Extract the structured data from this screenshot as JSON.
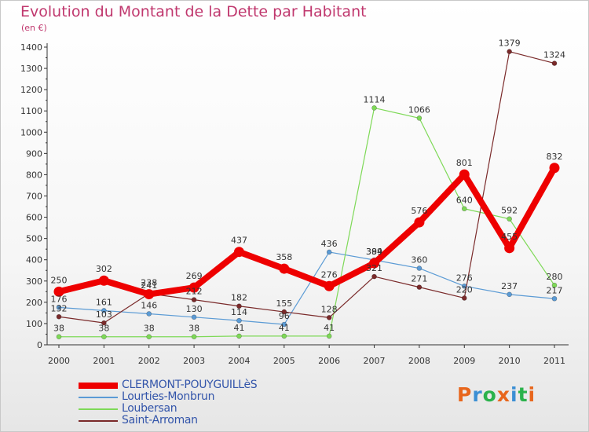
{
  "chart_data": {
    "type": "line",
    "title": "Evolution du Montant de la Dette par Habitant",
    "subtitle": "(en €)",
    "categories": [
      "2000",
      "2001",
      "2002",
      "2003",
      "2004",
      "2005",
      "2006",
      "2007",
      "2008",
      "2009",
      "2010",
      "2011"
    ],
    "yticks": [
      0,
      100,
      200,
      300,
      400,
      500,
      600,
      700,
      800,
      900,
      1000,
      1100,
      1200,
      1300,
      1400
    ],
    "ylim": [
      0,
      1400
    ],
    "grid": false,
    "legend_position": "bottom-left",
    "series": [
      {
        "name": "CLERMONT-POUYGUILLèS",
        "color": "#ee0000",
        "width": 8,
        "values": [
          250,
          302,
          238,
          269,
          437,
          358,
          276,
          384,
          576,
          801,
          455,
          832
        ]
      },
      {
        "name": "Lourties-Monbrun",
        "color": "#5b9bd5",
        "width": 1.2,
        "values": [
          176,
          161,
          146,
          130,
          114,
          96,
          436,
          399,
          360,
          276,
          237,
          217
        ]
      },
      {
        "name": "Loubersan",
        "color": "#7ed957",
        "width": 1.2,
        "values": [
          38,
          38,
          38,
          38,
          41,
          41,
          41,
          1114,
          1066,
          640,
          592,
          280
        ]
      },
      {
        "name": "Saint-Arroman",
        "color": "#7a2a2a",
        "width": 1.2,
        "values": [
          132,
          103,
          241,
          212,
          182,
          155,
          128,
          321,
          271,
          220,
          1379,
          1324
        ]
      }
    ]
  },
  "logo": {
    "letters": [
      "P",
      "r",
      "o",
      "x",
      "i",
      "t",
      "i"
    ],
    "colors": [
      "#e8661c",
      "#3b8fd4",
      "#2bb24c",
      "#e8661c",
      "#3b8fd4",
      "#2bb24c",
      "#e8661c"
    ]
  }
}
